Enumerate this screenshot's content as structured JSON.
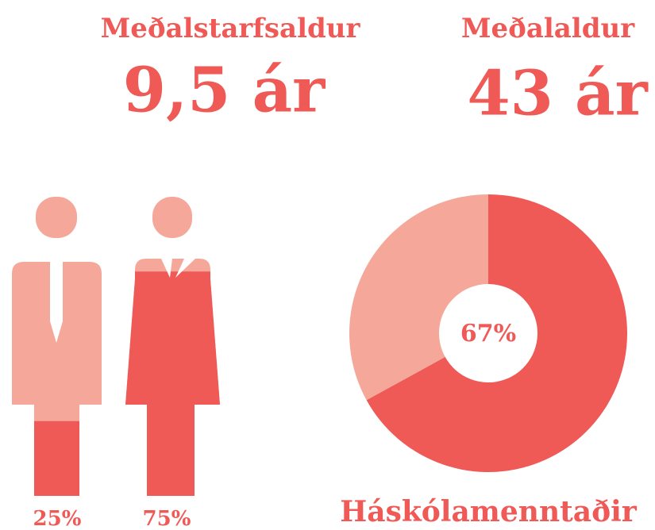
{
  "stats": [
    {
      "label": "Meðalstarfsaldur",
      "value": "9,5 ár"
    },
    {
      "label": "Meðalaldur",
      "value": "43 ár"
    }
  ],
  "gender": {
    "values": [
      25,
      75
    ],
    "value_labels": [
      "25%",
      "75%"
    ],
    "colors": [
      "#f5a89a",
      "#ef5956"
    ]
  },
  "donut": {
    "value": 67,
    "value_label": "67%",
    "label": "Háskólamenntaðir",
    "colors": [
      "#ef5956",
      "#f5a89a"
    ]
  }
}
